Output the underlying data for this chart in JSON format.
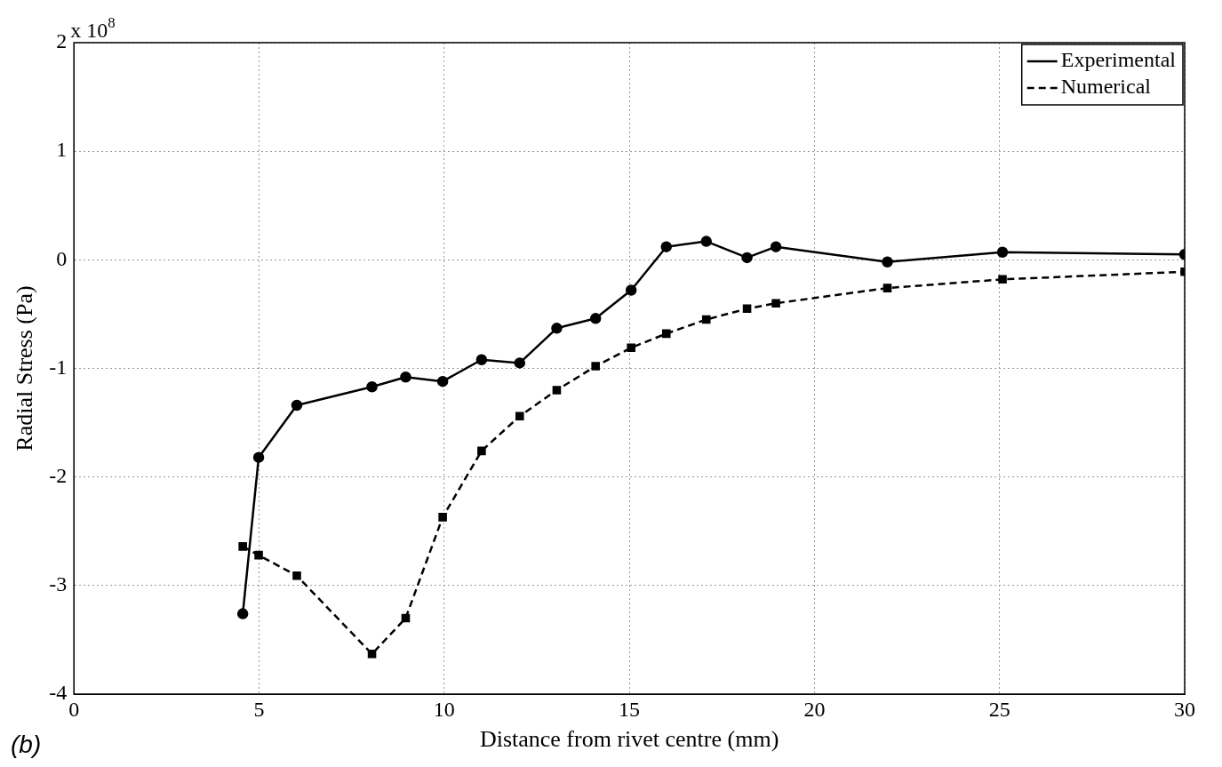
{
  "chart_data": {
    "type": "line",
    "xlabel": "Distance from rivet centre (mm)",
    "ylabel": "Radial Stress (Pa)",
    "annotations": [
      "x 10$^{8}$",
      "(b)"
    ],
    "xlim": [
      0,
      30
    ],
    "xticks": [
      0,
      5,
      10,
      15,
      20,
      25,
      30
    ],
    "ylim": [
      -4,
      2
    ],
    "yticks": [
      -4,
      -3,
      -2,
      -1,
      0,
      1,
      2
    ],
    "grid": true,
    "legend": "top right",
    "series": [
      {
        "name": "Experimental",
        "color": "#000000",
        "marker": "circle",
        "line_style": "solid",
        "x": [
          4.56,
          4.99,
          6.02,
          8.05,
          8.96,
          9.96,
          11.01,
          12.04,
          13.04,
          14.09,
          15.05,
          16.0,
          17.08,
          18.18,
          18.96,
          21.97,
          25.08,
          30
        ],
        "values": [
          -3.26,
          -1.82,
          -1.34,
          -1.17,
          -1.08,
          -1.12,
          -0.92,
          -0.95,
          -0.63,
          -0.54,
          -0.28,
          0.12,
          0.17,
          0.02,
          0.12,
          -0.02,
          0.07,
          0.05
        ]
      },
      {
        "name": "Numerical",
        "color": "#000000",
        "marker": "square",
        "line_style": "dashed",
        "x": [
          4.56,
          4.99,
          6.02,
          8.05,
          8.96,
          9.96,
          11.01,
          12.04,
          13.04,
          14.09,
          15.05,
          16.0,
          17.08,
          18.18,
          18.96,
          21.97,
          25.08,
          30
        ],
        "values": [
          -2.64,
          -2.72,
          -2.91,
          -3.63,
          -3.3,
          -2.37,
          -1.76,
          -1.44,
          -1.2,
          -0.98,
          -0.81,
          -0.68,
          -0.55,
          -0.45,
          -0.4,
          -0.26,
          -0.18,
          -0.11
        ]
      }
    ]
  }
}
